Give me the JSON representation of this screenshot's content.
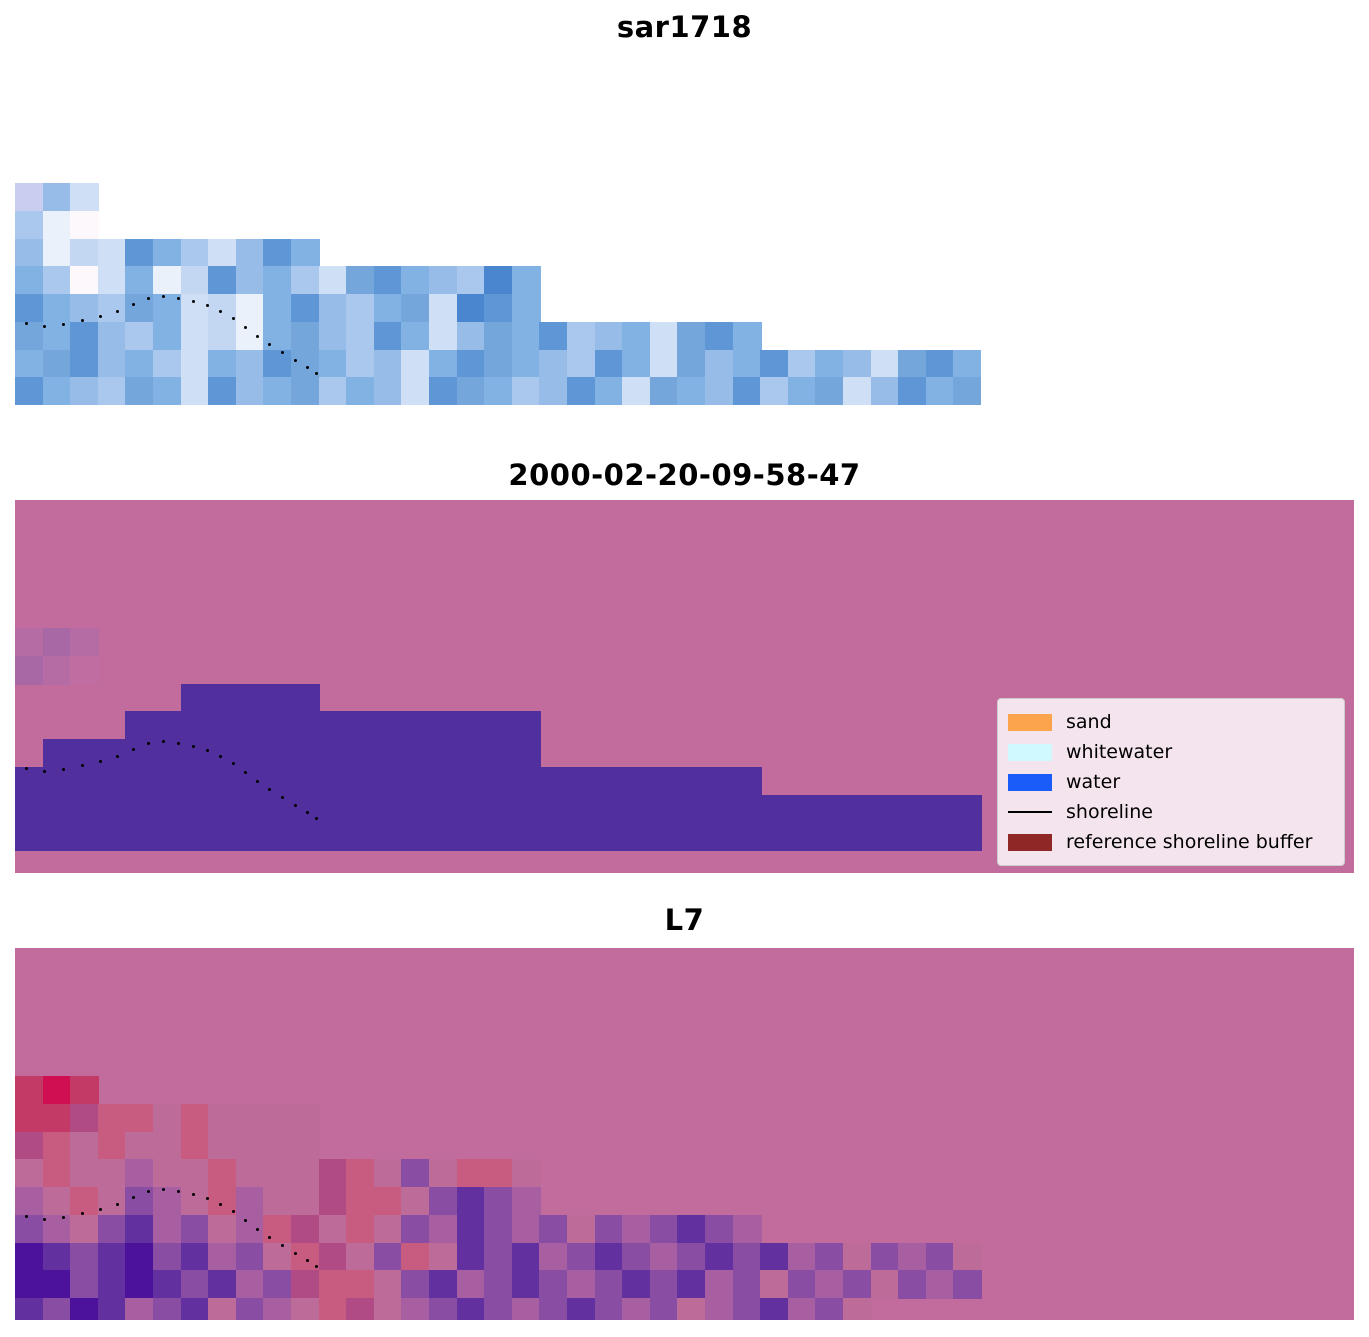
{
  "panels": [
    {
      "id": "sar1718",
      "title": "sar1718",
      "background": "transparent",
      "palette": {
        "l": "#c9cdf0",
        "h": "#97bce8",
        "a": "#aac8ed",
        "b": "#82b1e3",
        "c": "#5f97d6",
        "d": "#cfe0f6",
        "e": "#eaf1fb",
        "f": "#fdf8fb",
        "g": "#74a6dc",
        "i": "#c3d6f2",
        "k": "#4a86cf"
      },
      "grid": [
        "lhd................................",
        "aef................................",
        "heidcbadhcb........................",
        "bafdbeichbadgcbhakb................",
        "cbhagbdiebchabgdkcb................",
        "gbchabdiebghacbdhgbcahbdgcb........",
        "bgchbadbhcgbahdbcgbhacbdghbcabhdgcb",
        "cbhagbdchbgabhdcgbahcbdgbhcabgdhcbg"
      ]
    },
    {
      "id": "classification",
      "title": "2000-02-20-09-58-47",
      "background": "#c16c9d",
      "palette": {
        "W": "#51309d",
        "m": "#b56ca4",
        "n": "#a868a6",
        "o": "#c06da1"
      },
      "grid": [
        "mnm................................",
        "nmo................................",
        "......WWWWW........................",
        "....WWWWWWWWWWWWWWW................",
        ".WWWWWWWWWWWWWWWWWW................",
        "WWWWWWWWWWWWWWWWWWWWWWWWWWW........",
        "WWWWWWWWWWWWWWWWWWWWWWWWWWWWWWWWWWW",
        "WWWWWWWWWWWWWWWWWWWWWWWWWWWWWWWWWWW"
      ]
    },
    {
      "id": "l7",
      "title": "L7",
      "background": "#c16c9d",
      "palette": {
        "R": "#cf0f52",
        "r": "#c43a67",
        "p": "#c85b80",
        "q": "#bd6b99",
        "v": "#8a4da4",
        "V": "#63309f",
        "U": "#4c129b",
        "t": "#a75fa2",
        "w": "#b14b86"
      },
      "grid": [
        "rRr................................",
        "rrwppqpqqqq........................",
        "wpqpqqpqqqq........................",
        "qpqqtqqpqqqwpqvqppq................",
        "tqpqvtqptqqwppqvVvt................",
        "vtqvVtvqtpwqpqvtVvtvqvtvVvt........",
        "UVvVUvVtvqpwqvpqVvVtvVvtvVvVtvqvtvq",
        "UUvVUVvVtvwppqvVtvVvtvVvVtvqvtvqvtv",
        "VvUVtvVqvtqpwqtvVvtvVvtvqtvVtvq...."
      ]
    }
  ],
  "shoreline_dots": [
    [
      10,
      139
    ],
    [
      28,
      142
    ],
    [
      47,
      140
    ],
    [
      66,
      136
    ],
    [
      84,
      132
    ],
    [
      101,
      127
    ],
    [
      117,
      120
    ],
    [
      132,
      114
    ],
    [
      147,
      112
    ],
    [
      162,
      114
    ],
    [
      177,
      117
    ],
    [
      191,
      121
    ],
    [
      204,
      127
    ],
    [
      217,
      134
    ],
    [
      229,
      143
    ],
    [
      241,
      152
    ],
    [
      253,
      160
    ],
    [
      266,
      168
    ],
    [
      279,
      176
    ],
    [
      291,
      183
    ],
    [
      300,
      189
    ]
  ],
  "legend": {
    "items": [
      {
        "label": "sand",
        "type": "patch",
        "color": "#fca44b"
      },
      {
        "label": "whitewater",
        "type": "patch",
        "color": "#d0f9ff"
      },
      {
        "label": "water",
        "type": "patch",
        "color": "#1a5cfa"
      },
      {
        "label": "shoreline",
        "type": "line",
        "color": "#000000"
      },
      {
        "label": "reference shoreline buffer",
        "type": "patch",
        "color": "#8f2727"
      }
    ]
  },
  "chart_data": [
    {
      "type": "heatmap",
      "title": "sar1718",
      "description": "SAR backscatter image rendered in a blue colormap; staircase-shaped image swath on white background with the detected shoreline plotted as small black dots"
    },
    {
      "type": "heatmap",
      "title": "2000-02-20-09-58-47",
      "description": "Pixel classification map: water class shown as solid purple region inside the pink reference shoreline buffer; detected shoreline drawn as black dotted curve",
      "classes": [
        "sand",
        "whitewater",
        "water",
        "shoreline",
        "reference shoreline buffer"
      ],
      "class_colors": [
        "#fca44b",
        "#d0f9ff",
        "#1a5cfa",
        "#000000",
        "#8f2727"
      ],
      "legend_position": "center right",
      "background_color": "#c16c9d",
      "water_region_color": "#51309d"
    },
    {
      "type": "heatmap",
      "title": "L7",
      "description": "Landsat 7 satellite image (red/purple tones) overlaid with the pink reference shoreline buffer and black dotted detected shoreline"
    }
  ]
}
